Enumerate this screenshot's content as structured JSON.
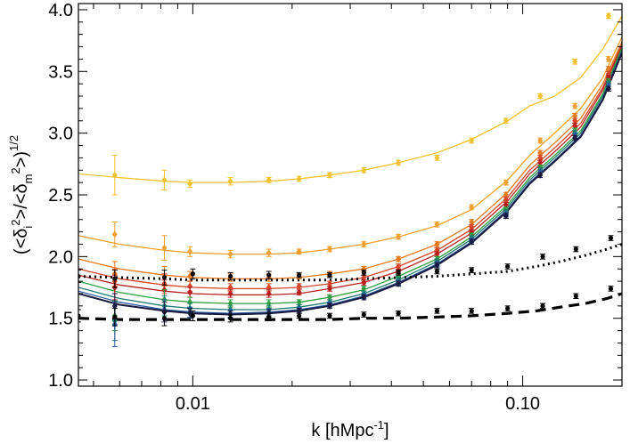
{
  "chart_data": {
    "type": "line",
    "xscale": "log",
    "xlim": [
      0.0045,
      0.2
    ],
    "ylim": [
      0.95,
      4.05
    ],
    "grid": false,
    "legend": "none",
    "xlabel": "k [hMpc",
    "xlabel_sup": "-1",
    "xlabel_end": "]",
    "ylabel_parts": {
      "open": "(<δ",
      "sub_i": "i",
      "sup_2a": "2",
      "mid": ">/<δ",
      "sub_m": "m",
      "sup_2b": "2",
      "close": ">)",
      "exp": "1/2"
    },
    "x_ticks": [
      {
        "value": 0.01,
        "label": "0.01"
      },
      {
        "value": 0.1,
        "label": "0.10"
      }
    ],
    "y_ticks": [
      {
        "value": 1.0,
        "label": "1.0"
      },
      {
        "value": 1.5,
        "label": "1.5"
      },
      {
        "value": 2.0,
        "label": "2.0"
      },
      {
        "value": 2.5,
        "label": "2.5"
      },
      {
        "value": 3.0,
        "label": "3.0"
      },
      {
        "value": 3.5,
        "label": "3.5"
      },
      {
        "value": 4.0,
        "label": "4.0"
      }
    ],
    "series": [
      {
        "color": "#f2c12e",
        "x": [
          0.0045,
          0.006,
          0.0082,
          0.01,
          0.013,
          0.017,
          0.021,
          0.026,
          0.033,
          0.042,
          0.055,
          0.07,
          0.09,
          0.105,
          0.125,
          0.15,
          0.175,
          0.2
        ],
        "y": [
          2.67,
          2.64,
          2.61,
          2.6,
          2.6,
          2.61,
          2.63,
          2.66,
          2.7,
          2.76,
          2.84,
          2.95,
          3.1,
          3.22,
          3.3,
          3.45,
          3.68,
          3.95
        ]
      },
      {
        "color": "#f0a030",
        "x": [
          0.0045,
          0.006,
          0.0082,
          0.01,
          0.013,
          0.017,
          0.021,
          0.026,
          0.033,
          0.042,
          0.055,
          0.07,
          0.09,
          0.105,
          0.125,
          0.15,
          0.175,
          0.2
        ],
        "y": [
          2.17,
          2.1,
          2.05,
          2.03,
          2.02,
          2.02,
          2.03,
          2.06,
          2.1,
          2.16,
          2.25,
          2.38,
          2.62,
          2.82,
          3.0,
          3.2,
          3.45,
          3.78
        ]
      },
      {
        "color": "#e67a1e",
        "x": [
          0.0045,
          0.006,
          0.0082,
          0.01,
          0.013,
          0.017,
          0.021,
          0.026,
          0.033,
          0.042,
          0.055,
          0.07,
          0.09,
          0.105,
          0.125,
          0.15,
          0.175,
          0.2
        ],
        "y": [
          1.98,
          1.9,
          1.85,
          1.83,
          1.82,
          1.82,
          1.83,
          1.86,
          1.9,
          1.98,
          2.1,
          2.26,
          2.52,
          2.74,
          2.92,
          3.12,
          3.4,
          3.74
        ]
      },
      {
        "color": "#d6452a",
        "x": [
          0.0045,
          0.006,
          0.0082,
          0.01,
          0.013,
          0.017,
          0.021,
          0.026,
          0.033,
          0.042,
          0.055,
          0.07,
          0.09,
          0.105,
          0.125,
          0.15,
          0.175,
          0.2
        ],
        "y": [
          1.9,
          1.82,
          1.77,
          1.75,
          1.74,
          1.74,
          1.75,
          1.78,
          1.83,
          1.92,
          2.05,
          2.22,
          2.48,
          2.7,
          2.88,
          3.08,
          3.37,
          3.72
        ]
      },
      {
        "color": "#b81f1f",
        "x": [
          0.0045,
          0.006,
          0.0082,
          0.01,
          0.013,
          0.017,
          0.021,
          0.026,
          0.033,
          0.042,
          0.055,
          0.07,
          0.09,
          0.105,
          0.125,
          0.15,
          0.175,
          0.2
        ],
        "y": [
          1.85,
          1.77,
          1.72,
          1.7,
          1.69,
          1.69,
          1.7,
          1.74,
          1.79,
          1.88,
          2.02,
          2.19,
          2.45,
          2.67,
          2.85,
          3.05,
          3.35,
          3.71
        ]
      },
      {
        "color": "#2e9e3e",
        "x": [
          0.0045,
          0.006,
          0.0082,
          0.01,
          0.013,
          0.017,
          0.021,
          0.026,
          0.033,
          0.042,
          0.055,
          0.07,
          0.09,
          0.105,
          0.125,
          0.15,
          0.175,
          0.2
        ],
        "y": [
          1.8,
          1.71,
          1.65,
          1.63,
          1.62,
          1.62,
          1.63,
          1.67,
          1.73,
          1.84,
          1.98,
          2.16,
          2.42,
          2.64,
          2.82,
          3.02,
          3.32,
          3.69
        ]
      },
      {
        "color": "#1f7a72",
        "x": [
          0.0045,
          0.006,
          0.0082,
          0.01,
          0.013,
          0.017,
          0.021,
          0.026,
          0.033,
          0.042,
          0.055,
          0.07,
          0.09,
          0.105,
          0.125,
          0.15,
          0.175,
          0.2
        ],
        "y": [
          1.75,
          1.66,
          1.6,
          1.58,
          1.57,
          1.57,
          1.59,
          1.63,
          1.7,
          1.81,
          1.96,
          2.14,
          2.4,
          2.62,
          2.8,
          3.0,
          3.3,
          3.67
        ]
      },
      {
        "color": "#2a5a9e",
        "x": [
          0.0045,
          0.006,
          0.0082,
          0.01,
          0.013,
          0.017,
          0.021,
          0.026,
          0.033,
          0.042,
          0.055,
          0.07,
          0.09,
          0.105,
          0.125,
          0.15,
          0.175,
          0.2
        ],
        "y": [
          1.72,
          1.63,
          1.57,
          1.55,
          1.54,
          1.55,
          1.57,
          1.61,
          1.68,
          1.79,
          1.94,
          2.12,
          2.38,
          2.6,
          2.78,
          2.98,
          3.28,
          3.66
        ]
      },
      {
        "color": "#1a1a40",
        "x": [
          0.0045,
          0.006,
          0.0082,
          0.01,
          0.013,
          0.017,
          0.021,
          0.026,
          0.033,
          0.042,
          0.055,
          0.07,
          0.09,
          0.105,
          0.125,
          0.15,
          0.175,
          0.2
        ],
        "y": [
          1.7,
          1.61,
          1.56,
          1.54,
          1.53,
          1.54,
          1.56,
          1.6,
          1.67,
          1.78,
          1.93,
          2.11,
          2.37,
          2.59,
          2.77,
          2.97,
          3.27,
          3.65
        ]
      }
    ],
    "points": [
      {
        "color": "#f2c12e",
        "x": [
          0.0042,
          0.0058,
          0.0082,
          0.0098,
          0.013,
          0.017,
          0.021,
          0.026,
          0.033,
          0.042,
          0.055,
          0.07,
          0.089,
          0.113,
          0.144,
          0.182
        ],
        "y": [
          2.68,
          2.66,
          2.62,
          2.59,
          2.61,
          2.62,
          2.63,
          2.66,
          2.7,
          2.76,
          2.8,
          2.94,
          3.1,
          3.3,
          3.58,
          3.95
        ],
        "yerr": [
          0.08,
          0.16,
          0.08,
          0.03,
          0.03,
          0.02,
          0.02,
          0.02,
          0.02,
          0.02,
          0.02,
          0.02,
          0.02,
          0.02,
          0.02,
          0.02
        ]
      },
      {
        "color": "#f0a030",
        "x": [
          0.0042,
          0.0058,
          0.0082,
          0.0098,
          0.013,
          0.017,
          0.021,
          0.026,
          0.033,
          0.042,
          0.055,
          0.07,
          0.089,
          0.113,
          0.144,
          0.182
        ],
        "y": [
          2.12,
          2.18,
          2.07,
          2.04,
          2.02,
          2.03,
          2.04,
          2.06,
          2.1,
          2.16,
          2.26,
          2.4,
          2.6,
          2.94,
          3.22,
          3.6
        ],
        "yerr": [
          0.12,
          0.1,
          0.1,
          0.04,
          0.03,
          0.03,
          0.02,
          0.02,
          0.02,
          0.02,
          0.02,
          0.02,
          0.02,
          0.02,
          0.02,
          0.02
        ]
      },
      {
        "color": "#e67a1e",
        "x": [
          0.0042,
          0.0058,
          0.0082,
          0.0098,
          0.013,
          0.017,
          0.021,
          0.026,
          0.033,
          0.042,
          0.055,
          0.07,
          0.089,
          0.113,
          0.144,
          0.182
        ],
        "y": [
          1.98,
          1.86,
          1.84,
          1.84,
          1.83,
          1.83,
          1.84,
          1.86,
          1.9,
          1.98,
          2.1,
          2.28,
          2.5,
          2.84,
          3.14,
          3.52
        ],
        "yerr": [
          0.12,
          0.1,
          0.08,
          0.04,
          0.03,
          0.03,
          0.02,
          0.02,
          0.02,
          0.02,
          0.02,
          0.02,
          0.02,
          0.02,
          0.02,
          0.02
        ]
      },
      {
        "color": "#d6452a",
        "x": [
          0.0042,
          0.0058,
          0.0082,
          0.0098,
          0.013,
          0.017,
          0.021,
          0.026,
          0.033,
          0.042,
          0.055,
          0.07,
          0.089,
          0.113,
          0.144,
          0.182
        ],
        "y": [
          1.9,
          1.8,
          1.78,
          1.76,
          1.75,
          1.75,
          1.76,
          1.78,
          1.83,
          1.92,
          2.05,
          2.24,
          2.46,
          2.8,
          3.1,
          3.48
        ],
        "yerr": [
          0.12,
          0.1,
          0.08,
          0.04,
          0.03,
          0.03,
          0.02,
          0.02,
          0.02,
          0.02,
          0.02,
          0.02,
          0.02,
          0.02,
          0.02,
          0.02
        ]
      },
      {
        "color": "#b81f1f",
        "x": [
          0.0042,
          0.0058,
          0.0082,
          0.0098,
          0.013,
          0.017,
          0.021,
          0.026,
          0.033,
          0.042,
          0.055,
          0.07,
          0.089,
          0.113,
          0.144,
          0.182
        ],
        "y": [
          1.85,
          1.75,
          1.73,
          1.71,
          1.7,
          1.7,
          1.71,
          1.74,
          1.79,
          1.88,
          2.02,
          2.2,
          2.42,
          2.76,
          3.06,
          3.45
        ],
        "yerr": [
          0.12,
          0.1,
          0.08,
          0.04,
          0.03,
          0.03,
          0.02,
          0.02,
          0.02,
          0.02,
          0.02,
          0.02,
          0.02,
          0.02,
          0.02,
          0.02
        ]
      },
      {
        "color": "#2e9e3e",
        "x": [
          0.0042,
          0.0058,
          0.0082,
          0.0098,
          0.013,
          0.017,
          0.021,
          0.026,
          0.033,
          0.042,
          0.055,
          0.07,
          0.089,
          0.113,
          0.144,
          0.182
        ],
        "y": [
          1.78,
          1.52,
          1.65,
          1.63,
          1.62,
          1.62,
          1.63,
          1.67,
          1.74,
          1.84,
          1.98,
          2.17,
          2.38,
          2.72,
          3.02,
          3.42
        ],
        "yerr": [
          0.12,
          0.12,
          0.08,
          0.04,
          0.03,
          0.03,
          0.02,
          0.02,
          0.02,
          0.02,
          0.02,
          0.02,
          0.02,
          0.02,
          0.02,
          0.02
        ]
      },
      {
        "color": "#1f7a72",
        "x": [
          0.0042,
          0.0058,
          0.0082,
          0.0098,
          0.013,
          0.017,
          0.021,
          0.026,
          0.033,
          0.042,
          0.055,
          0.07,
          0.089,
          0.113,
          0.144,
          0.182
        ],
        "y": [
          1.74,
          1.48,
          1.6,
          1.58,
          1.57,
          1.57,
          1.59,
          1.63,
          1.7,
          1.81,
          1.96,
          2.15,
          2.36,
          2.7,
          3.0,
          3.4
        ],
        "yerr": [
          0.12,
          0.16,
          0.08,
          0.04,
          0.03,
          0.03,
          0.02,
          0.02,
          0.02,
          0.02,
          0.02,
          0.02,
          0.02,
          0.02,
          0.02,
          0.02
        ]
      },
      {
        "color": "#2a5a9e",
        "x": [
          0.0042,
          0.0058,
          0.0082,
          0.0098,
          0.013,
          0.017,
          0.021,
          0.026,
          0.033,
          0.042,
          0.055,
          0.07,
          0.089,
          0.113,
          0.144,
          0.182
        ],
        "y": [
          1.7,
          1.45,
          1.57,
          1.55,
          1.54,
          1.55,
          1.57,
          1.61,
          1.68,
          1.79,
          1.94,
          2.13,
          2.34,
          2.68,
          2.98,
          3.38
        ],
        "yerr": [
          0.14,
          0.18,
          0.08,
          0.04,
          0.03,
          0.03,
          0.02,
          0.02,
          0.02,
          0.02,
          0.02,
          0.02,
          0.02,
          0.02,
          0.02,
          0.02
        ]
      },
      {
        "color": "#1a1a40",
        "x": [
          0.0042,
          0.0058,
          0.0082,
          0.0098,
          0.013,
          0.017,
          0.021,
          0.026,
          0.033,
          0.042,
          0.055,
          0.07,
          0.089,
          0.113,
          0.144,
          0.182
        ],
        "y": [
          1.68,
          1.6,
          1.55,
          1.54,
          1.53,
          1.54,
          1.56,
          1.6,
          1.67,
          1.78,
          1.93,
          2.12,
          2.33,
          2.66,
          2.96,
          3.36
        ],
        "yerr": [
          0.14,
          0.1,
          0.08,
          0.04,
          0.03,
          0.03,
          0.02,
          0.02,
          0.02,
          0.02,
          0.02,
          0.02,
          0.02,
          0.02,
          0.02,
          0.02
        ]
      }
    ],
    "dotted_curve": {
      "color": "#000000",
      "style": "dotted",
      "x": [
        0.0045,
        0.006,
        0.0082,
        0.01,
        0.013,
        0.017,
        0.021,
        0.026,
        0.033,
        0.042,
        0.055,
        0.07,
        0.09,
        0.11,
        0.13,
        0.155,
        0.18,
        0.2
      ],
      "y": [
        1.84,
        1.83,
        1.82,
        1.81,
        1.81,
        1.81,
        1.81,
        1.81,
        1.82,
        1.83,
        1.84,
        1.86,
        1.88,
        1.92,
        1.96,
        2.01,
        2.06,
        2.1
      ]
    },
    "dotted_points": {
      "color": "#000000",
      "x": [
        0.0045,
        0.0058,
        0.0082,
        0.01,
        0.013,
        0.017,
        0.021,
        0.026,
        0.033,
        0.042,
        0.055,
        0.07,
        0.09,
        0.115,
        0.145,
        0.185
      ],
      "y": [
        1.84,
        1.82,
        1.83,
        1.86,
        1.84,
        1.85,
        1.85,
        1.85,
        1.87,
        1.87,
        1.88,
        1.89,
        1.92,
        2.0,
        2.06,
        2.15
      ],
      "yerr": [
        0.05,
        0.07,
        0.06,
        0.04,
        0.03,
        0.03,
        0.02,
        0.02,
        0.02,
        0.02,
        0.02,
        0.02,
        0.02,
        0.02,
        0.02,
        0.02
      ]
    },
    "dashed_curve": {
      "color": "#000000",
      "style": "dashed",
      "x": [
        0.0045,
        0.006,
        0.0082,
        0.01,
        0.013,
        0.017,
        0.021,
        0.026,
        0.033,
        0.042,
        0.055,
        0.07,
        0.09,
        0.11,
        0.13,
        0.155,
        0.18,
        0.2
      ],
      "y": [
        1.5,
        1.49,
        1.49,
        1.49,
        1.49,
        1.49,
        1.49,
        1.49,
        1.5,
        1.5,
        1.51,
        1.52,
        1.54,
        1.56,
        1.59,
        1.62,
        1.66,
        1.7
      ]
    },
    "dashed_points": {
      "color": "#000000",
      "x": [
        0.0045,
        0.0058,
        0.0082,
        0.01,
        0.013,
        0.017,
        0.021,
        0.026,
        0.033,
        0.042,
        0.055,
        0.07,
        0.09,
        0.115,
        0.145,
        0.185
      ],
      "y": [
        1.52,
        1.51,
        1.5,
        1.52,
        1.5,
        1.51,
        1.52,
        1.52,
        1.53,
        1.54,
        1.56,
        1.56,
        1.58,
        1.6,
        1.68,
        1.74
      ],
      "yerr": [
        0.05,
        0.07,
        0.06,
        0.04,
        0.03,
        0.03,
        0.02,
        0.02,
        0.02,
        0.02,
        0.02,
        0.02,
        0.02,
        0.02,
        0.02,
        0.02
      ]
    }
  }
}
